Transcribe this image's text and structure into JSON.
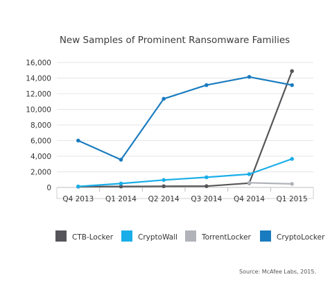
{
  "chart_data": {
    "type": "line",
    "title": "New Samples of Prominent Ransomware Families",
    "xlabel": "",
    "ylabel": "",
    "categories": [
      "Q4 2013",
      "Q1 2014",
      "Q2 2014",
      "Q3 2014",
      "Q4 2014",
      "Q1 2015"
    ],
    "ylim": [
      0,
      16000
    ],
    "yticks": [
      0,
      2000,
      4000,
      6000,
      8000,
      10000,
      12000,
      14000,
      16000
    ],
    "ytick_labels": [
      "0",
      "2,000",
      "4,000",
      "6,000",
      "8,000",
      "10,000",
      "12,000",
      "14,000",
      "16,000"
    ],
    "grid": true,
    "legend_position": "bottom",
    "series": [
      {
        "name": "CTB-Locker",
        "color": "#555559",
        "values": [
          100,
          120,
          150,
          160,
          550,
          14900
        ]
      },
      {
        "name": "CryptoWall",
        "color": "#19aee8",
        "values": [
          120,
          500,
          950,
          1300,
          1700,
          3650
        ]
      },
      {
        "name": "TorrentLocker",
        "color": "#b0b3b8",
        "values": [
          null,
          null,
          null,
          null,
          600,
          450
        ]
      },
      {
        "name": "CryptoLocker",
        "color": "#1a7cc0",
        "values": [
          6000,
          3550,
          11350,
          13100,
          14150,
          13100
        ]
      }
    ],
    "source": "Source: McAfee Labs, 2015."
  }
}
